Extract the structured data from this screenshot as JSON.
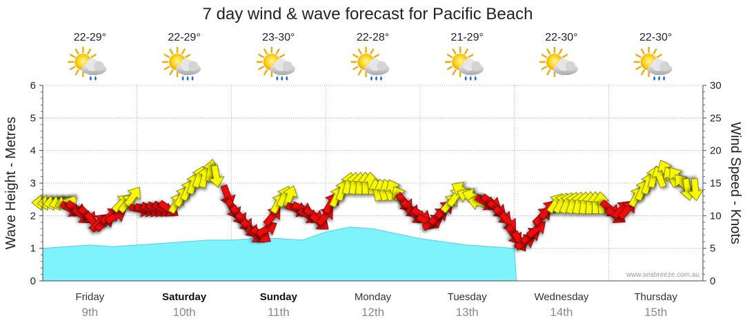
{
  "chart_data": {
    "type": "area",
    "title": "7 day wind & wave forecast for Pacific Beach",
    "ylabel_left": "Wave Height - Metres",
    "ylabel_right": "Wind Speed - Knots",
    "ylim_left": [
      0,
      6
    ],
    "ylim_right": [
      0,
      30
    ],
    "yticks_left": [
      "0",
      "1",
      "2",
      "3",
      "4",
      "5",
      "6"
    ],
    "yticks_right": [
      "0",
      "5",
      "10",
      "15",
      "20",
      "25",
      "30"
    ],
    "days": [
      {
        "day": "Friday",
        "date": "9th",
        "bold": false,
        "temp": "22-29°",
        "icon": "sun-cloud-light-rain-icon",
        "rain_drops": 2
      },
      {
        "day": "Saturday",
        "date": "10th",
        "bold": true,
        "temp": "22-29°",
        "icon": "sun-cloud-rain-icon",
        "rain_drops": 3
      },
      {
        "day": "Sunday",
        "date": "11th",
        "bold": true,
        "temp": "23-30°",
        "icon": "sun-cloud-rain-icon",
        "rain_drops": 3
      },
      {
        "day": "Monday",
        "date": "12th",
        "bold": false,
        "temp": "22-28°",
        "icon": "sun-cloud-rain-icon",
        "rain_drops": 3
      },
      {
        "day": "Tuesday",
        "date": "13th",
        "bold": false,
        "temp": "21-29°",
        "icon": "sun-cloud-rain-icon",
        "rain_drops": 3
      },
      {
        "day": "Wednesday",
        "date": "14th",
        "bold": false,
        "temp": "22-30°",
        "icon": "sun-cloud-icon",
        "rain_drops": 0
      },
      {
        "day": "Thursday",
        "date": "15th",
        "bold": false,
        "temp": "22-30°",
        "icon": "sun-cloud-rain-icon",
        "rain_drops": 3
      }
    ],
    "wave_height_m": {
      "x_days": [
        0,
        0.25,
        0.5,
        0.75,
        1.0,
        1.25,
        1.5,
        1.75,
        2.0,
        2.25,
        2.5,
        2.75,
        3.0,
        3.25,
        3.5,
        3.75,
        4.0,
        4.25,
        4.5,
        4.75,
        5.0
      ],
      "values": [
        1.0,
        1.05,
        1.1,
        1.05,
        1.1,
        1.15,
        1.2,
        1.25,
        1.25,
        1.3,
        1.3,
        1.25,
        1.5,
        1.65,
        1.6,
        1.45,
        1.3,
        1.2,
        1.1,
        1.05,
        1.0
      ]
    },
    "wind_series_note": "arrows show wind direction; yellow = onshore/light, red = offshore",
    "wind_knots": [
      {
        "d": 0.0,
        "kts": 12,
        "dir": 270,
        "c": "yellow"
      },
      {
        "d": 0.06,
        "kts": 12,
        "dir": 265,
        "c": "yellow"
      },
      {
        "d": 0.12,
        "kts": 12,
        "dir": 260,
        "c": "yellow"
      },
      {
        "d": 0.18,
        "kts": 12,
        "dir": 255,
        "c": "yellow"
      },
      {
        "d": 0.24,
        "kts": 12,
        "dir": 250,
        "c": "yellow"
      },
      {
        "d": 0.3,
        "kts": 11,
        "dir": 120,
        "c": "red"
      },
      {
        "d": 0.36,
        "kts": 11,
        "dir": 125,
        "c": "red"
      },
      {
        "d": 0.42,
        "kts": 10,
        "dir": 130,
        "c": "red"
      },
      {
        "d": 0.48,
        "kts": 10,
        "dir": 135,
        "c": "red"
      },
      {
        "d": 0.54,
        "kts": 9,
        "dir": 140,
        "c": "red"
      },
      {
        "d": 0.6,
        "kts": 9,
        "dir": 45,
        "c": "red"
      },
      {
        "d": 0.66,
        "kts": 9,
        "dir": 50,
        "c": "red"
      },
      {
        "d": 0.72,
        "kts": 10,
        "dir": 55,
        "c": "red"
      },
      {
        "d": 0.78,
        "kts": 10,
        "dir": 60,
        "c": "red"
      },
      {
        "d": 0.84,
        "kts": 12,
        "dir": 45,
        "c": "yellow"
      },
      {
        "d": 0.9,
        "kts": 12,
        "dir": 40,
        "c": "yellow"
      },
      {
        "d": 0.96,
        "kts": 13,
        "dir": 35,
        "c": "yellow"
      },
      {
        "d": 1.04,
        "kts": 11,
        "dir": 100,
        "c": "red"
      },
      {
        "d": 1.1,
        "kts": 11,
        "dir": 105,
        "c": "red"
      },
      {
        "d": 1.16,
        "kts": 11,
        "dir": 110,
        "c": "red"
      },
      {
        "d": 1.22,
        "kts": 11,
        "dir": 115,
        "c": "red"
      },
      {
        "d": 1.28,
        "kts": 11,
        "dir": 120,
        "c": "red"
      },
      {
        "d": 1.34,
        "kts": 11,
        "dir": 125,
        "c": "red"
      },
      {
        "d": 1.42,
        "kts": 12,
        "dir": 30,
        "c": "yellow"
      },
      {
        "d": 1.48,
        "kts": 13,
        "dir": 30,
        "c": "yellow"
      },
      {
        "d": 1.54,
        "kts": 14,
        "dir": 25,
        "c": "yellow"
      },
      {
        "d": 1.6,
        "kts": 15,
        "dir": 20,
        "c": "yellow"
      },
      {
        "d": 1.66,
        "kts": 16,
        "dir": 20,
        "c": "yellow"
      },
      {
        "d": 1.72,
        "kts": 16,
        "dir": 15,
        "c": "yellow"
      },
      {
        "d": 1.78,
        "kts": 17,
        "dir": 10,
        "c": "yellow"
      },
      {
        "d": 1.84,
        "kts": 16,
        "dir": 170,
        "c": "yellow"
      },
      {
        "d": 1.96,
        "kts": 13,
        "dir": 160,
        "c": "red"
      },
      {
        "d": 2.02,
        "kts": 11,
        "dir": 150,
        "c": "red"
      },
      {
        "d": 2.08,
        "kts": 10,
        "dir": 145,
        "c": "red"
      },
      {
        "d": 2.14,
        "kts": 9,
        "dir": 140,
        "c": "red"
      },
      {
        "d": 2.2,
        "kts": 8,
        "dir": 135,
        "c": "red"
      },
      {
        "d": 2.26,
        "kts": 7,
        "dir": 130,
        "c": "red"
      },
      {
        "d": 2.32,
        "kts": 7,
        "dir": 125,
        "c": "red"
      },
      {
        "d": 2.38,
        "kts": 8,
        "dir": 60,
        "c": "red"
      },
      {
        "d": 2.44,
        "kts": 10,
        "dir": 40,
        "c": "red"
      },
      {
        "d": 2.5,
        "kts": 12,
        "dir": 30,
        "c": "yellow"
      },
      {
        "d": 2.56,
        "kts": 13,
        "dir": 25,
        "c": "yellow"
      },
      {
        "d": 2.62,
        "kts": 13,
        "dir": 20,
        "c": "yellow"
      },
      {
        "d": 2.7,
        "kts": 11,
        "dir": 110,
        "c": "red"
      },
      {
        "d": 2.76,
        "kts": 11,
        "dir": 115,
        "c": "red"
      },
      {
        "d": 2.82,
        "kts": 10,
        "dir": 120,
        "c": "red"
      },
      {
        "d": 2.88,
        "kts": 10,
        "dir": 125,
        "c": "red"
      },
      {
        "d": 2.94,
        "kts": 9,
        "dir": 130,
        "c": "red"
      },
      {
        "d": 3.0,
        "kts": 10,
        "dir": 40,
        "c": "red"
      },
      {
        "d": 3.06,
        "kts": 12,
        "dir": 30,
        "c": "red"
      },
      {
        "d": 3.12,
        "kts": 13,
        "dir": 25,
        "c": "yellow"
      },
      {
        "d": 3.18,
        "kts": 14,
        "dir": 20,
        "c": "yellow"
      },
      {
        "d": 3.24,
        "kts": 15,
        "dir": 15,
        "c": "yellow"
      },
      {
        "d": 3.3,
        "kts": 15,
        "dir": 10,
        "c": "yellow"
      },
      {
        "d": 3.36,
        "kts": 15,
        "dir": 5,
        "c": "yellow"
      },
      {
        "d": 3.42,
        "kts": 15,
        "dir": 0,
        "c": "yellow"
      },
      {
        "d": 3.48,
        "kts": 15,
        "dir": 355,
        "c": "yellow"
      },
      {
        "d": 3.54,
        "kts": 14,
        "dir": 350,
        "c": "yellow"
      },
      {
        "d": 3.6,
        "kts": 14,
        "dir": 345,
        "c": "yellow"
      },
      {
        "d": 3.66,
        "kts": 14,
        "dir": 340,
        "c": "yellow"
      },
      {
        "d": 3.72,
        "kts": 14,
        "dir": 335,
        "c": "yellow"
      },
      {
        "d": 3.78,
        "kts": 13,
        "dir": 330,
        "c": "yellow"
      },
      {
        "d": 3.84,
        "kts": 12,
        "dir": 140,
        "c": "red"
      },
      {
        "d": 3.9,
        "kts": 11,
        "dir": 135,
        "c": "red"
      },
      {
        "d": 3.96,
        "kts": 10,
        "dir": 130,
        "c": "red"
      },
      {
        "d": 4.02,
        "kts": 10,
        "dir": 125,
        "c": "red"
      },
      {
        "d": 4.08,
        "kts": 9,
        "dir": 120,
        "c": "red"
      },
      {
        "d": 4.14,
        "kts": 9,
        "dir": 60,
        "c": "red"
      },
      {
        "d": 4.2,
        "kts": 10,
        "dir": 50,
        "c": "red"
      },
      {
        "d": 4.26,
        "kts": 11,
        "dir": 45,
        "c": "red"
      },
      {
        "d": 4.32,
        "kts": 12,
        "dir": 40,
        "c": "yellow"
      },
      {
        "d": 4.38,
        "kts": 13,
        "dir": 35,
        "c": "yellow"
      },
      {
        "d": 4.44,
        "kts": 14,
        "dir": 300,
        "c": "yellow"
      },
      {
        "d": 4.5,
        "kts": 13,
        "dir": 295,
        "c": "yellow"
      },
      {
        "d": 4.56,
        "kts": 13,
        "dir": 290,
        "c": "yellow"
      },
      {
        "d": 4.62,
        "kts": 12,
        "dir": 285,
        "c": "yellow"
      },
      {
        "d": 4.7,
        "kts": 12,
        "dir": 120,
        "c": "red"
      },
      {
        "d": 4.76,
        "kts": 12,
        "dir": 125,
        "c": "red"
      },
      {
        "d": 4.82,
        "kts": 11,
        "dir": 130,
        "c": "red"
      },
      {
        "d": 4.88,
        "kts": 10,
        "dir": 135,
        "c": "red"
      },
      {
        "d": 4.94,
        "kts": 9,
        "dir": 140,
        "c": "red"
      },
      {
        "d": 5.0,
        "kts": 7,
        "dir": 145,
        "c": "red"
      },
      {
        "d": 5.06,
        "kts": 6,
        "dir": 150,
        "c": "red"
      },
      {
        "d": 5.12,
        "kts": 6,
        "dir": 60,
        "c": "red"
      },
      {
        "d": 5.18,
        "kts": 7,
        "dir": 55,
        "c": "red"
      },
      {
        "d": 5.24,
        "kts": 8,
        "dir": 50,
        "c": "red"
      },
      {
        "d": 5.3,
        "kts": 10,
        "dir": 45,
        "c": "red"
      },
      {
        "d": 5.36,
        "kts": 11,
        "dir": 40,
        "c": "red"
      },
      {
        "d": 5.44,
        "kts": 12,
        "dir": 35,
        "c": "yellow"
      },
      {
        "d": 5.5,
        "kts": 12,
        "dir": 30,
        "c": "yellow"
      },
      {
        "d": 5.56,
        "kts": 12,
        "dir": 25,
        "c": "yellow"
      },
      {
        "d": 5.62,
        "kts": 12,
        "dir": 20,
        "c": "yellow"
      },
      {
        "d": 5.68,
        "kts": 12,
        "dir": 15,
        "c": "yellow"
      },
      {
        "d": 5.74,
        "kts": 12,
        "dir": 10,
        "c": "yellow"
      },
      {
        "d": 5.8,
        "kts": 12,
        "dir": 5,
        "c": "yellow"
      },
      {
        "d": 5.86,
        "kts": 12,
        "dir": 0,
        "c": "yellow"
      },
      {
        "d": 5.92,
        "kts": 12,
        "dir": 355,
        "c": "yellow"
      },
      {
        "d": 6.02,
        "kts": 11,
        "dir": 130,
        "c": "red"
      },
      {
        "d": 6.08,
        "kts": 10,
        "dir": 125,
        "c": "red"
      },
      {
        "d": 6.14,
        "kts": 11,
        "dir": 45,
        "c": "red"
      },
      {
        "d": 6.2,
        "kts": 11,
        "dir": 40,
        "c": "red"
      },
      {
        "d": 6.3,
        "kts": 13,
        "dir": 30,
        "c": "yellow"
      },
      {
        "d": 6.36,
        "kts": 14,
        "dir": 25,
        "c": "yellow"
      },
      {
        "d": 6.42,
        "kts": 15,
        "dir": 20,
        "c": "yellow"
      },
      {
        "d": 6.48,
        "kts": 16,
        "dir": 15,
        "c": "yellow"
      },
      {
        "d": 6.54,
        "kts": 16,
        "dir": 340,
        "c": "yellow"
      },
      {
        "d": 6.6,
        "kts": 17,
        "dir": 335,
        "c": "yellow"
      },
      {
        "d": 6.66,
        "kts": 16,
        "dir": 330,
        "c": "yellow"
      },
      {
        "d": 6.72,
        "kts": 16,
        "dir": 325,
        "c": "yellow"
      },
      {
        "d": 6.78,
        "kts": 15,
        "dir": 320,
        "c": "yellow"
      },
      {
        "d": 6.84,
        "kts": 14,
        "dir": 170,
        "c": "yellow"
      },
      {
        "d": 6.92,
        "kts": 14,
        "dir": 175,
        "c": "yellow"
      }
    ],
    "credit": "www.seabreeze.com.au",
    "colors": {
      "wave_fill": "#7ff3fb",
      "wave_line": "#55cde0",
      "arrow_yellow": "#f8f800",
      "arrow_red": "#ee1111",
      "grid": "#999999"
    }
  }
}
